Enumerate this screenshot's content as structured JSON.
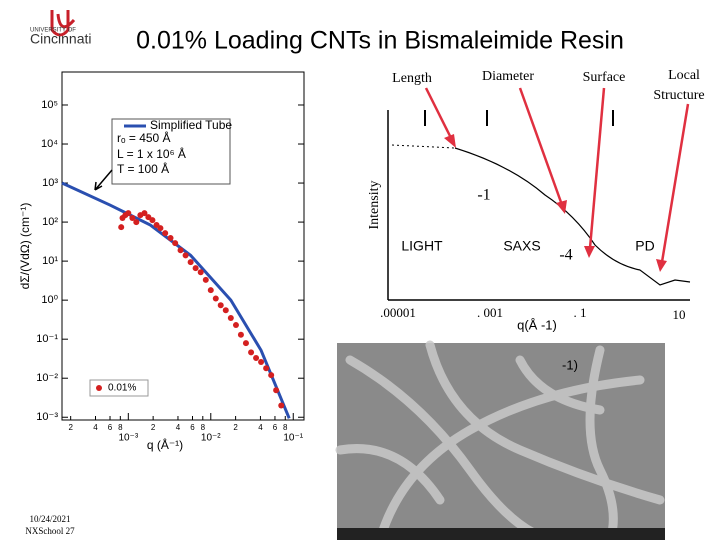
{
  "header": {
    "logo_top": "UNIVERSITY OF",
    "logo_name": "Cincinnati",
    "title": "0.01% Loading CNTs in Bismaleimide Resin"
  },
  "chart_data": {
    "type": "scatter",
    "xlabel": "q (Å⁻¹)",
    "ylabel": "dΣ/(VdΩ) (cm⁻¹)",
    "log_x": true,
    "log_y": true,
    "xlim": [
      0.000157,
      0.135
    ],
    "ylim": [
      0.00085,
      700000
    ],
    "xticks": [
      {
        "value": 0.0002,
        "label": "2"
      },
      {
        "value": 0.0004,
        "label": "4"
      },
      {
        "value": 0.0006,
        "label": "6"
      },
      {
        "value": 0.0008,
        "label": "8"
      },
      {
        "value": 0.001,
        "label": "10⁻³"
      },
      {
        "value": 0.002,
        "label": "2"
      },
      {
        "value": 0.004,
        "label": "4"
      },
      {
        "value": 0.006,
        "label": "6"
      },
      {
        "value": 0.008,
        "label": "8"
      },
      {
        "value": 0.01,
        "label": "10⁻²"
      },
      {
        "value": 0.02,
        "label": "2"
      },
      {
        "value": 0.04,
        "label": "4"
      },
      {
        "value": 0.06,
        "label": "6"
      },
      {
        "value": 0.08,
        "label": "8"
      },
      {
        "value": 0.1,
        "label": "10⁻¹"
      }
    ],
    "yticks": [
      {
        "value": 0.001,
        "label": "10⁻³"
      },
      {
        "value": 0.01,
        "label": "10⁻²"
      },
      {
        "value": 0.1,
        "label": "10⁻¹"
      },
      {
        "value": 1,
        "label": "10⁰"
      },
      {
        "value": 10,
        "label": "10¹"
      },
      {
        "value": 100,
        "label": "10²"
      },
      {
        "value": 1000,
        "label": "10³"
      },
      {
        "value": 10000,
        "label": "10⁴"
      },
      {
        "value": 100000,
        "label": "10⁵"
      }
    ],
    "series": [
      {
        "name": "Simplified Tube",
        "kind": "line",
        "color": "#2a4fb0",
        "x": [
          0.000157,
          0.0006,
          0.00185,
          0.0057,
          0.0175,
          0.0407,
          0.0893
        ],
        "values": [
          1000,
          273,
          84,
          14,
          1.0,
          0.052,
          0.00094
        ]
      },
      {
        "name": "0.01%",
        "kind": "points",
        "color": "#d42020",
        "x": [
          0.00082,
          0.00085,
          0.00092,
          0.001,
          0.00112,
          0.00125,
          0.0014,
          0.00157,
          0.00175,
          0.00196,
          0.0022,
          0.00245,
          0.0028,
          0.00325,
          0.0037,
          0.0043,
          0.00495,
          0.0057,
          0.00655,
          0.00755,
          0.0087,
          0.01,
          0.0115,
          0.0132,
          0.0152,
          0.0175,
          0.0202,
          0.0232,
          0.0267,
          0.0308,
          0.0354,
          0.0407,
          0.0469,
          0.054,
          0.062,
          0.0715
        ],
        "values": [
          74,
          127,
          151,
          170,
          127,
          100,
          151,
          170,
          134,
          112,
          84,
          70,
          52,
          39,
          29,
          19,
          14,
          9.4,
          6.6,
          5.2,
          3.3,
          1.8,
          1.1,
          0.74,
          0.55,
          0.35,
          0.23,
          0.13,
          0.079,
          0.046,
          0.033,
          0.026,
          0.018,
          0.012,
          0.0049,
          0.002
        ]
      }
    ],
    "legend_notes": [
      "rₒ = 450 Å",
      "L = 1 x 10⁶ Å",
      "T = 100 Å"
    ]
  },
  "schematic": {
    "ylabel": "Intensity",
    "length": "Length",
    "diameter": "Diameter",
    "surface": "Surface",
    "local_structure": [
      "Local",
      "Structure"
    ],
    "slope1": "-1",
    "slope2": "-4",
    "light": "LIGHT",
    "saxs": "SAXS",
    "pd": "PD",
    "ticks": [
      ".00001",
      ". 001",
      ". 1",
      "10"
    ],
    "xlabel": "q(Å -1)"
  },
  "photo_text": "-1)",
  "footer": {
    "date": "10/24/2021",
    "slide": "NXSchool 27"
  }
}
